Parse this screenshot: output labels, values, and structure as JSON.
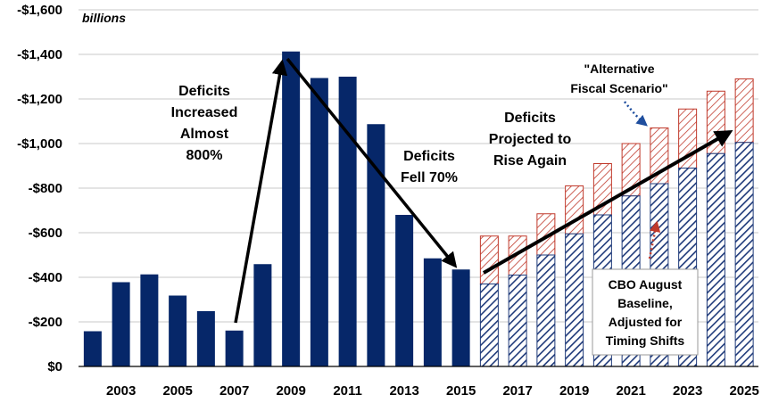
{
  "colors": {
    "actual_bar": "#062769",
    "baseline_hatch": "#1f3a7a",
    "alt_hatch": "#c0392b",
    "arrow": "#000000",
    "blue_callout_arrow": "#1f4e9e",
    "red_callout_arrow": "#c0392b"
  },
  "chart_data": {
    "type": "bar",
    "unit_label": "billions",
    "ylim": [
      0,
      -1600
    ],
    "y_ticks": [
      0,
      -200,
      -400,
      -600,
      -800,
      -1000,
      -1200,
      -1400,
      -1600
    ],
    "y_tick_labels": [
      "$0",
      "-$200",
      "-$400",
      "-$600",
      "-$800",
      "-$1,000",
      "-$1,200",
      "-$1,400",
      "-$1,600"
    ],
    "x_tick_labels": [
      "2003",
      "2005",
      "2007",
      "2009",
      "2011",
      "2013",
      "2015",
      "2017",
      "2019",
      "2021",
      "2023",
      "2025"
    ],
    "grid": true,
    "series": [
      {
        "years": [
          2002,
          2003,
          2004,
          2005,
          2006,
          2007,
          2008,
          2009,
          2010,
          2011,
          2012,
          2013,
          2014,
          2015
        ],
        "values": [
          -158,
          -378,
          -413,
          -318,
          -248,
          -161,
          -459,
          -1413,
          -1294,
          -1300,
          -1087,
          -680,
          -485,
          -435
        ]
      },
      {
        "name": "CBO August Baseline, Adjusted for Timing Shifts",
        "years": [
          2016,
          2017,
          2018,
          2019,
          2020,
          2021,
          2022,
          2023,
          2024,
          2025
        ],
        "values": [
          -370,
          -410,
          -500,
          -595,
          -680,
          -765,
          -820,
          -890,
          -955,
          -1005
        ]
      },
      {
        "name": "\"Alternative Fiscal Scenario\"",
        "years": [
          2016,
          2017,
          2018,
          2019,
          2020,
          2021,
          2022,
          2023,
          2024,
          2025
        ],
        "values": [
          -585,
          -585,
          -685,
          -810,
          -910,
          -1000,
          -1070,
          -1155,
          -1235,
          -1290
        ]
      }
    ],
    "annotations": {
      "increase": [
        "Deficits",
        "Increased",
        "Almost",
        "800%"
      ],
      "fell": [
        "Deficits",
        "Fell 70%"
      ],
      "rise": [
        "Deficits",
        "Projected to",
        "Rise Again"
      ],
      "alt": [
        "\"Alternative",
        "Fiscal Scenario\""
      ],
      "cbo": [
        "CBO August",
        "Baseline,",
        "Adjusted for",
        "Timing Shifts"
      ]
    }
  }
}
